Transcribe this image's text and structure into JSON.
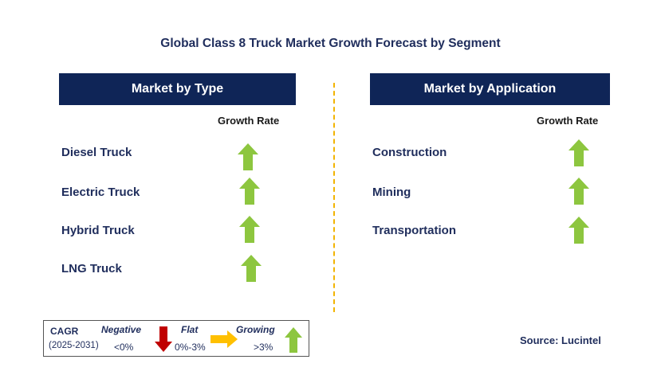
{
  "title": "Global Class 8 Truck Market Growth Forecast by Segment",
  "type_panel": {
    "header": "Market by Type",
    "growth_label": "Growth Rate",
    "items": [
      {
        "label": "Diesel Truck",
        "trend": "growing"
      },
      {
        "label": "Electric Truck",
        "trend": "growing"
      },
      {
        "label": "Hybrid Truck",
        "trend": "growing"
      },
      {
        "label": "LNG Truck",
        "trend": "growing"
      }
    ]
  },
  "application_panel": {
    "header": "Market by Application",
    "growth_label": "Growth Rate",
    "items": [
      {
        "label": "Construction",
        "trend": "growing"
      },
      {
        "label": "Mining",
        "trend": "growing"
      },
      {
        "label": "Transportation",
        "trend": "growing"
      }
    ]
  },
  "legend": {
    "cagr_label": "CAGR",
    "period": "(2025-2031)",
    "negative_label": "Negative",
    "negative_range": "<0%",
    "flat_label": "Flat",
    "flat_range": "0%-3%",
    "growing_label": "Growing",
    "growing_range": ">3%"
  },
  "source": "Source: Lucintel",
  "colors": {
    "header_bg": "#0f2557",
    "growing": "#8dc63f",
    "negative": "#c00000",
    "flat": "#ffc000",
    "divider": "#f2b400"
  }
}
